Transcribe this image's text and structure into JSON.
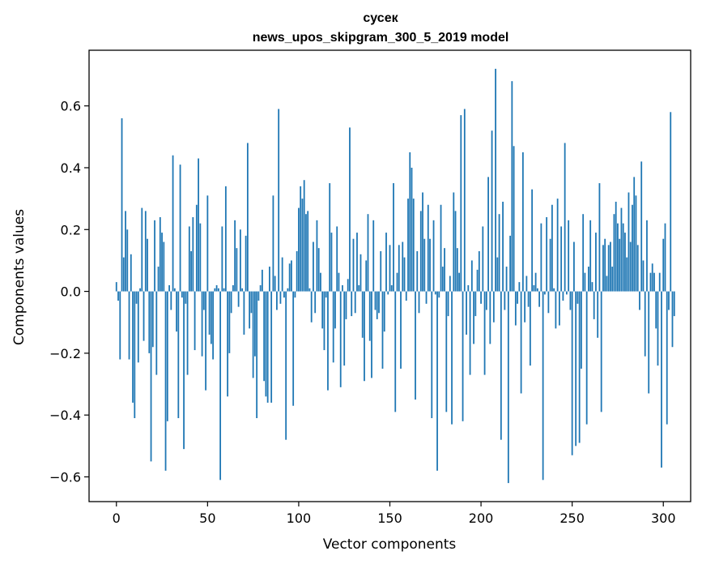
{
  "chart_data": {
    "type": "bar",
    "title": "сусек",
    "subtitle": "news_upos_skipgram_300_5_2019 model",
    "xlabel": "Vector components",
    "ylabel": "Components values",
    "xlim": [
      -15,
      315
    ],
    "ylim": [
      -0.68,
      0.78
    ],
    "xticks": [
      0,
      50,
      100,
      150,
      200,
      250,
      300
    ],
    "yticks": [
      -0.6,
      -0.4,
      -0.2,
      0.0,
      0.2,
      0.4,
      0.6
    ],
    "ytick_labels": [
      "−0.6",
      "−0.4",
      "−0.2",
      "0.0",
      "0.2",
      "0.4",
      "0.6"
    ],
    "grid": false,
    "bar_color": "#1f77b4",
    "x_start": 0,
    "values": [
      0.03,
      -0.03,
      -0.22,
      0.56,
      0.11,
      0.26,
      0.2,
      -0.22,
      0.12,
      -0.36,
      -0.41,
      -0.04,
      -0.23,
      0.01,
      0.27,
      -0.16,
      0.26,
      0.17,
      -0.2,
      -0.55,
      -0.18,
      0.23,
      -0.27,
      0.08,
      0.24,
      0.19,
      0.16,
      -0.58,
      -0.42,
      0.02,
      -0.06,
      0.44,
      0.01,
      -0.13,
      -0.41,
      0.41,
      -0.02,
      -0.51,
      -0.04,
      -0.27,
      0.21,
      0.13,
      0.24,
      -0.19,
      0.28,
      0.43,
      0.22,
      -0.21,
      -0.06,
      -0.32,
      0.31,
      -0.14,
      -0.17,
      -0.22,
      0.01,
      0.02,
      0.01,
      -0.61,
      0.21,
      0.01,
      0.34,
      -0.34,
      -0.2,
      -0.07,
      0.02,
      0.23,
      0.14,
      -0.05,
      0.2,
      0.01,
      -0.14,
      0.18,
      0.48,
      -0.12,
      -0.07,
      -0.28,
      -0.21,
      -0.41,
      -0.03,
      0.02,
      0.07,
      -0.29,
      -0.34,
      -0.36,
      0.08,
      -0.36,
      0.31,
      0.05,
      -0.06,
      0.59,
      -0.04,
      0.11,
      -0.02,
      -0.48,
      0.01,
      0.09,
      0.1,
      -0.37,
      -0.02,
      0.13,
      0.27,
      0.34,
      0.3,
      0.36,
      0.25,
      0.26,
      0.01,
      -0.1,
      0.16,
      -0.07,
      0.23,
      0.14,
      0.06,
      -0.12,
      -0.19,
      -0.02,
      -0.32,
      0.35,
      0.19,
      -0.23,
      -0.12,
      0.21,
      0.06,
      -0.31,
      0.02,
      -0.24,
      -0.09,
      0.04,
      0.53,
      -0.08,
      0.17,
      -0.07,
      0.19,
      0.02,
      0.12,
      -0.15,
      -0.29,
      0.1,
      0.25,
      -0.16,
      -0.28,
      0.23,
      -0.06,
      -0.09,
      -0.07,
      0.13,
      -0.25,
      -0.13,
      0.19,
      -0.01,
      0.15,
      0.02,
      0.35,
      -0.39,
      0.06,
      0.15,
      -0.25,
      0.16,
      0.11,
      -0.03,
      0.3,
      0.45,
      0.4,
      0.3,
      -0.35,
      0.13,
      -0.07,
      0.26,
      0.32,
      0.17,
      -0.04,
      0.28,
      0.17,
      -0.41,
      0.23,
      -0.01,
      -0.58,
      -0.02,
      0.28,
      0.08,
      0.14,
      -0.39,
      -0.08,
      0.05,
      -0.43,
      0.32,
      0.26,
      0.14,
      0.06,
      0.57,
      -0.42,
      0.59,
      -0.14,
      0.02,
      -0.27,
      0.1,
      -0.17,
      -0.08,
      0.07,
      0.13,
      -0.04,
      0.21,
      -0.27,
      -0.06,
      0.37,
      -0.17,
      0.52,
      -0.1,
      0.72,
      0.11,
      0.25,
      -0.48,
      0.29,
      -0.06,
      0.08,
      -0.62,
      0.18,
      0.68,
      0.47,
      -0.11,
      -0.04,
      0.03,
      -0.33,
      0.45,
      -0.1,
      0.05,
      -0.05,
      -0.24,
      0.33,
      0.02,
      0.06,
      0.01,
      -0.05,
      0.22,
      -0.61,
      -0.01,
      0.24,
      -0.07,
      0.17,
      0.28,
      0.01,
      -0.12,
      0.3,
      -0.11,
      0.21,
      -0.03,
      0.48,
      -0.01,
      0.23,
      -0.06,
      -0.53,
      0.16,
      -0.5,
      -0.04,
      -0.49,
      -0.25,
      0.25,
      0.06,
      -0.43,
      0.08,
      0.23,
      0.03,
      -0.09,
      0.19,
      -0.15,
      0.35,
      -0.39,
      0.15,
      0.17,
      0.05,
      0.15,
      0.16,
      0.08,
      0.25,
      0.29,
      0.22,
      0.17,
      0.27,
      0.22,
      0.19,
      0.11,
      0.32,
      0.16,
      0.28,
      0.37,
      0.31,
      0.15,
      -0.06,
      0.42,
      0.1,
      -0.21,
      0.23,
      -0.33,
      0.06,
      0.09,
      0.06,
      -0.12,
      -0.24,
      0.06,
      -0.57,
      0.17,
      0.22,
      -0.43,
      -0.06,
      0.58,
      -0.18,
      -0.08
    ]
  }
}
